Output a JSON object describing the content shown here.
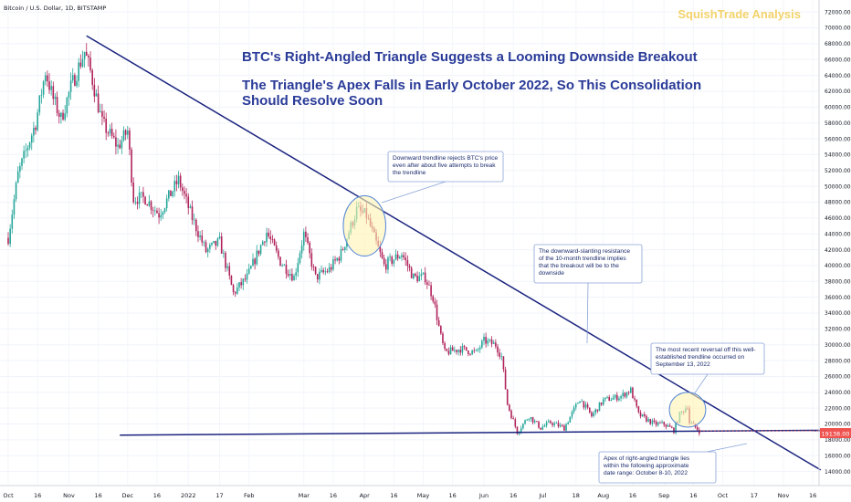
{
  "header": {
    "symbol": "Bitcoin / U.S. Dollar, 1D, BITSTAMP",
    "brand": "SquishTrade Analysis"
  },
  "title_line1": "BTC's Right-Angled Triangle Suggests a Looming Downside Breakout",
  "title_line2": "The Triangle's Apex Falls in Early October 2022, So This Consolidation",
  "title_line3": "Should Resolve Soon",
  "price_tag": "19138.00",
  "colors": {
    "up": "#26a69a",
    "down": "#ef5350",
    "wick_down": "#b0225a",
    "title": "#2a3b98",
    "trendline": "#1a237e",
    "brand": "#f3d36a",
    "highlight_fill": "#fff3b0",
    "highlight_stroke": "#4f83d8",
    "callout_border": "#8aa4d8"
  },
  "annotations": [
    {
      "id": "rejections",
      "lines": [
        "Downward trendline rejects BTC's price",
        "even after about five attempts to break",
        "the trendline"
      ]
    },
    {
      "id": "resistance",
      "lines": [
        "The downward-slanting resistance",
        "of the 10-month trendline implies",
        "that the breakout will be to the",
        "downside"
      ]
    },
    {
      "id": "reversal",
      "lines": [
        "The most recent reversal off this well-",
        "established trendline occurred on",
        "September 13, 2022"
      ]
    },
    {
      "id": "apex",
      "lines": [
        "Apex of right-angled triangle lies",
        "within the following approximate",
        "date range: October 8-10, 2022"
      ]
    }
  ],
  "chart_data": {
    "type": "candlestick",
    "xaxis": {
      "ticks": [
        {
          "label": "Oct",
          "date": "2021-10-01"
        },
        {
          "label": "16",
          "date": "2021-10-16"
        },
        {
          "label": "Nov",
          "date": "2021-11-01"
        },
        {
          "label": "16",
          "date": "2021-11-16"
        },
        {
          "label": "Dec",
          "date": "2021-12-01"
        },
        {
          "label": "16",
          "date": "2021-12-16"
        },
        {
          "label": "2022",
          "date": "2022-01-01"
        },
        {
          "label": "17",
          "date": "2022-01-17"
        },
        {
          "label": "Feb",
          "date": "2022-02-01"
        },
        {
          "label": "Mar",
          "date": "2022-03-01"
        },
        {
          "label": "16",
          "date": "2022-03-16"
        },
        {
          "label": "Apr",
          "date": "2022-04-01"
        },
        {
          "label": "16",
          "date": "2022-04-16"
        },
        {
          "label": "May",
          "date": "2022-05-01"
        },
        {
          "label": "16",
          "date": "2022-05-16"
        },
        {
          "label": "Jun",
          "date": "2022-06-01"
        },
        {
          "label": "16",
          "date": "2022-06-16"
        },
        {
          "label": "Jul",
          "date": "2022-07-01"
        },
        {
          "label": "18",
          "date": "2022-07-18"
        },
        {
          "label": "Aug",
          "date": "2022-08-01"
        },
        {
          "label": "16",
          "date": "2022-08-16"
        },
        {
          "label": "Sep",
          "date": "2022-09-01"
        },
        {
          "label": "16",
          "date": "2022-09-16"
        },
        {
          "label": "Oct",
          "date": "2022-10-01"
        },
        {
          "label": "17",
          "date": "2022-10-17"
        },
        {
          "label": "Nov",
          "date": "2022-11-01"
        },
        {
          "label": "16",
          "date": "2022-11-16"
        }
      ]
    },
    "yaxis": {
      "position": "right",
      "ylim": [
        13000,
        73000
      ],
      "ticks": [
        14000,
        16000,
        18000,
        20000,
        22000,
        24000,
        26000,
        28000,
        30000,
        32000,
        34000,
        36000,
        38000,
        40000,
        42000,
        44000,
        46000,
        48000,
        50000,
        52000,
        54000,
        56000,
        58000,
        60000,
        62000,
        64000,
        66000,
        68000,
        70000,
        72000
      ],
      "tick_labels": [
        "14000.00",
        "16000.00",
        "18000.00",
        "20000.00",
        "22000.00",
        "24000.00",
        "26000.00",
        "28000.00",
        "30000.00",
        "32000.00",
        "34000.00",
        "36000.00",
        "38000.00",
        "40000.00",
        "42000.00",
        "44000.00",
        "46000.00",
        "48000.00",
        "50000.00",
        "52000.00",
        "54000.00",
        "56000.00",
        "58000.00",
        "60000.00",
        "62000.00",
        "64000.00",
        "66000.00",
        "68000.00",
        "70000.00",
        "72000.00"
      ]
    },
    "price_anchors": [
      [
        "2021-10-01",
        43500
      ],
      [
        "2021-10-06",
        51500
      ],
      [
        "2021-10-15",
        58000
      ],
      [
        "2021-10-20",
        64500
      ],
      [
        "2021-10-24",
        61000
      ],
      [
        "2021-10-28",
        58500
      ],
      [
        "2021-11-02",
        62500
      ],
      [
        "2021-11-09",
        67000
      ],
      [
        "2021-11-12",
        64500
      ],
      [
        "2021-11-18",
        58000
      ],
      [
        "2021-11-26",
        55000
      ],
      [
        "2021-12-01",
        57000
      ],
      [
        "2021-12-04",
        48500
      ],
      [
        "2021-12-10",
        48500
      ],
      [
        "2021-12-17",
        46500
      ],
      [
        "2021-12-27",
        50800
      ],
      [
        "2022-01-03",
        46000
      ],
      [
        "2022-01-10",
        41800
      ],
      [
        "2022-01-17",
        43000
      ],
      [
        "2022-01-24",
        36500
      ],
      [
        "2022-01-31",
        38500
      ],
      [
        "2022-02-10",
        44200
      ],
      [
        "2022-02-17",
        40500
      ],
      [
        "2022-02-24",
        38500
      ],
      [
        "2022-03-01",
        44000
      ],
      [
        "2022-03-07",
        38500
      ],
      [
        "2022-03-14",
        39500
      ],
      [
        "2022-03-20",
        41500
      ],
      [
        "2022-03-28",
        47000
      ],
      [
        "2022-04-02",
        46300
      ],
      [
        "2022-04-06",
        43500
      ],
      [
        "2022-04-11",
        40000
      ],
      [
        "2022-04-20",
        41500
      ],
      [
        "2022-04-26",
        38500
      ],
      [
        "2022-05-02",
        38500
      ],
      [
        "2022-05-06",
        36000
      ],
      [
        "2022-05-10",
        31000
      ],
      [
        "2022-05-12",
        29000
      ],
      [
        "2022-05-20",
        29500
      ],
      [
        "2022-05-28",
        29000
      ],
      [
        "2022-06-01",
        30500
      ],
      [
        "2022-06-07",
        30000
      ],
      [
        "2022-06-10",
        28500
      ],
      [
        "2022-06-13",
        22500
      ],
      [
        "2022-06-18",
        19000
      ],
      [
        "2022-06-24",
        21000
      ],
      [
        "2022-06-30",
        19500
      ],
      [
        "2022-07-05",
        20200
      ],
      [
        "2022-07-12",
        19500
      ],
      [
        "2022-07-20",
        23200
      ],
      [
        "2022-07-26",
        21000
      ],
      [
        "2022-08-01",
        23000
      ],
      [
        "2022-08-10",
        23500
      ],
      [
        "2022-08-15",
        24300
      ],
      [
        "2022-08-19",
        21200
      ],
      [
        "2022-08-27",
        20000
      ],
      [
        "2022-09-01",
        20000
      ],
      [
        "2022-09-06",
        19200
      ],
      [
        "2022-09-09",
        21200
      ],
      [
        "2022-09-13",
        22300
      ],
      [
        "2022-09-14",
        20200
      ],
      [
        "2022-09-19",
        19138
      ]
    ],
    "trendlines": [
      {
        "name": "descending-resistance",
        "from": [
          "2021-11-10",
          69000
        ],
        "to": [
          "2022-11-20",
          14200
        ]
      },
      {
        "name": "horizontal-support",
        "from": [
          "2021-11-27",
          18600
        ],
        "to": [
          "2022-11-20",
          19200
        ]
      }
    ],
    "highlights": [
      {
        "center": [
          "2022-04-01",
          45000
        ],
        "rx_days": 7,
        "ry_price": 3800
      },
      {
        "center": [
          "2022-09-13",
          21800
        ],
        "rx_days": 6,
        "ry_price": 2200
      }
    ]
  }
}
